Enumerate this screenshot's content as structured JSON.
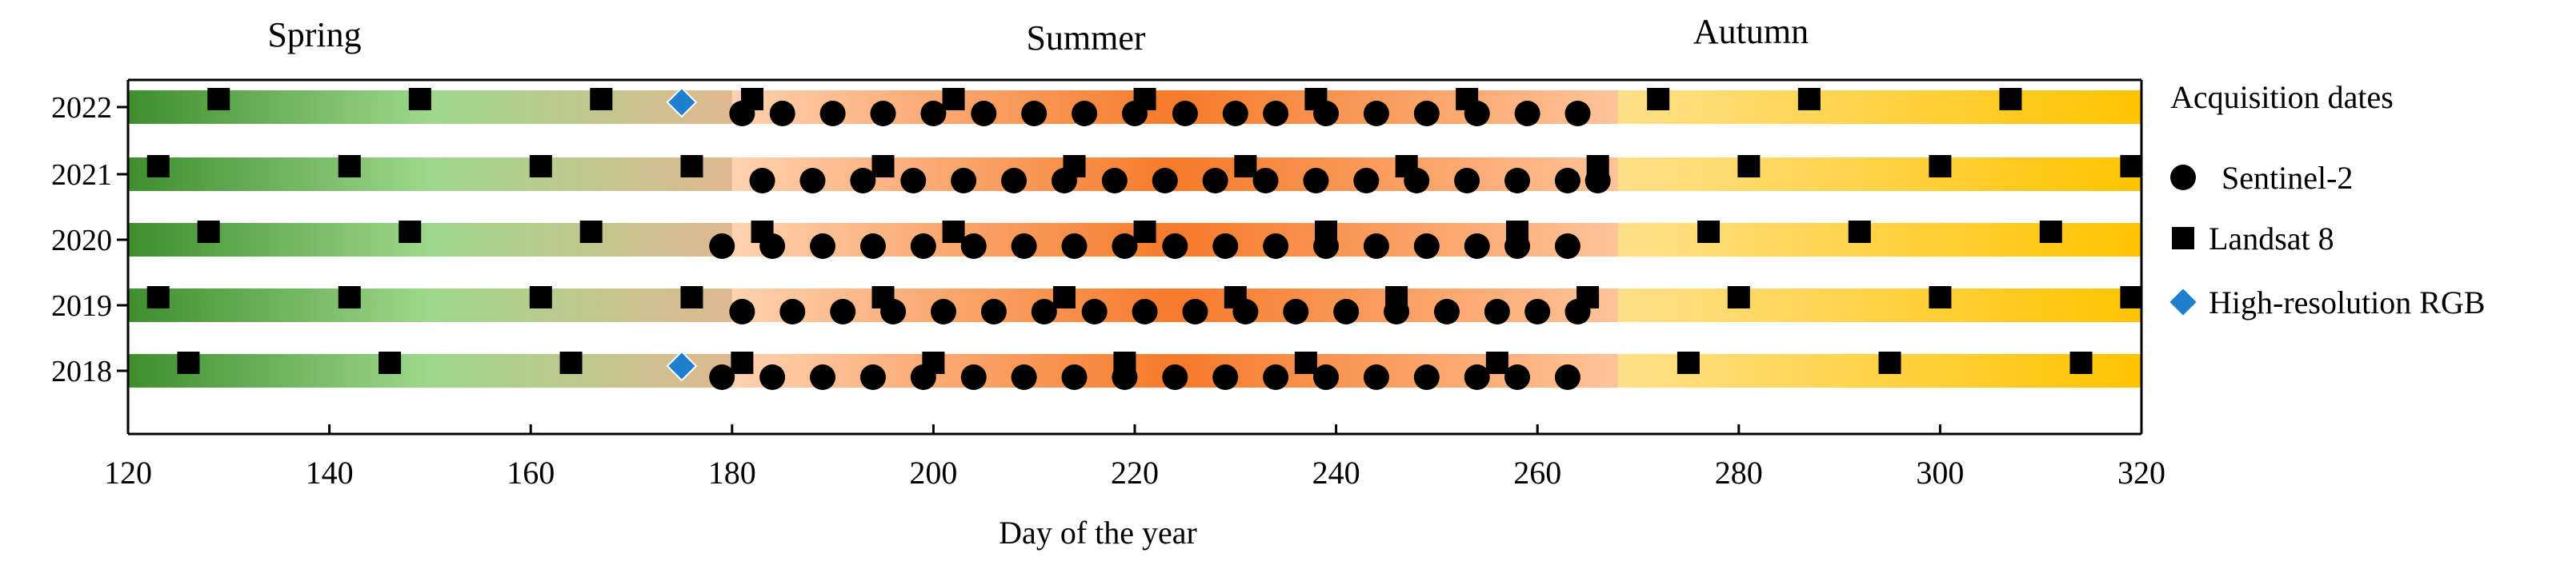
{
  "chart_data": {
    "type": "scatter",
    "xlabel": "Day of the year",
    "xlim": [
      120,
      320
    ],
    "xticks": [
      "120",
      "140",
      "160",
      "180",
      "200",
      "220",
      "240",
      "260",
      "280",
      "300",
      "320"
    ],
    "xtick_values": [
      120,
      140,
      160,
      180,
      200,
      220,
      240,
      260,
      280,
      300,
      320
    ],
    "categories": [
      "2022",
      "2021",
      "2020",
      "2019",
      "2018"
    ],
    "season_labels": [
      "Spring",
      "Summer",
      "Autumn"
    ],
    "season_colors": {
      "spring": [
        "#3e8e2e",
        "#9ed88c",
        "#e0b890"
      ],
      "summer": [
        "#ffd2b0",
        "#f57a2a",
        "#ffc49a"
      ],
      "autumn": [
        "#ffe08a",
        "#ffc400"
      ]
    },
    "legend_title": "Acquisition dates",
    "legend_position": "right",
    "series": [
      {
        "name": "Sentinel-2",
        "marker": "circle",
        "color": "#000000",
        "points": {
          "2022": [
            181,
            185,
            190,
            195,
            200,
            205,
            210,
            215,
            220,
            225,
            230,
            234,
            239,
            244,
            249,
            254,
            259,
            264
          ],
          "2021": [
            183,
            188,
            193,
            198,
            203,
            208,
            213,
            218,
            223,
            228,
            233,
            238,
            243,
            248,
            253,
            258,
            263,
            266
          ],
          "2020": [
            179,
            184,
            189,
            194,
            199,
            204,
            209,
            214,
            219,
            224,
            229,
            234,
            239,
            244,
            249,
            254,
            258,
            263
          ],
          "2019": [
            181,
            186,
            191,
            196,
            201,
            206,
            211,
            216,
            221,
            226,
            231,
            236,
            241,
            246,
            251,
            256,
            260,
            264
          ],
          "2018": [
            179,
            184,
            189,
            194,
            199,
            204,
            209,
            214,
            219,
            224,
            229,
            234,
            239,
            244,
            249,
            254,
            258,
            263
          ]
        }
      },
      {
        "name": "Landsat 8",
        "marker": "square",
        "color": "#000000",
        "points": {
          "2022": [
            129,
            149,
            167,
            182,
            202,
            221,
            238,
            253,
            272,
            287,
            307
          ],
          "2021": [
            123,
            142,
            161,
            176,
            195,
            214,
            231,
            247,
            266,
            281,
            300,
            319
          ],
          "2020": [
            128,
            148,
            166,
            183,
            202,
            221,
            239,
            258,
            277,
            292,
            311
          ],
          "2019": [
            123,
            142,
            161,
            176,
            195,
            213,
            230,
            246,
            265,
            280,
            300,
            319
          ],
          "2018": [
            126,
            146,
            164,
            181,
            200,
            219,
            237,
            256,
            275,
            295,
            314
          ]
        }
      },
      {
        "name": "High-resolution RGB",
        "marker": "diamond",
        "color": "#1f7fcf",
        "points": {
          "2022": [
            175
          ],
          "2018": [
            175
          ]
        }
      }
    ],
    "grid": false
  }
}
